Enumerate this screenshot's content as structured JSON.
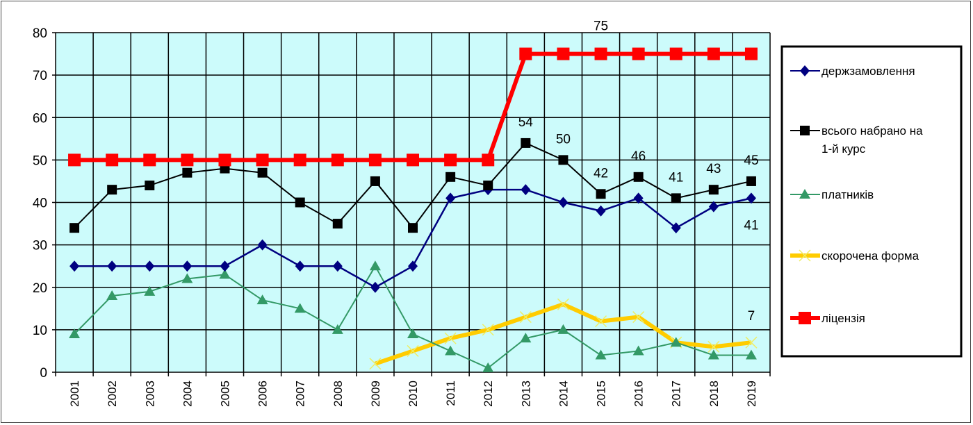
{
  "chart_data": {
    "type": "line",
    "title": "",
    "xlabel": "",
    "ylabel": "",
    "ylim": [
      0,
      80
    ],
    "yticks": [
      0,
      10,
      20,
      30,
      40,
      50,
      60,
      70,
      80
    ],
    "grid": true,
    "legend_position": "right",
    "background": "#ccfbfb",
    "categories": [
      "2001",
      "2002",
      "2003",
      "2004",
      "2005",
      "2006",
      "2007",
      "2008",
      "2009",
      "2010",
      "2011",
      "2012",
      "2013",
      "2014",
      "2015",
      "2016",
      "2017",
      "2018",
      "2019"
    ],
    "series": [
      {
        "name": "держзамовлення",
        "color": "#000080",
        "marker": "diamond",
        "values": [
          25,
          25,
          25,
          25,
          25,
          30,
          25,
          25,
          20,
          25,
          41,
          43,
          43,
          40,
          38,
          41,
          34,
          39,
          41
        ]
      },
      {
        "name": "всього набрано на 1-й курс",
        "color": "#000000",
        "marker": "square",
        "values": [
          34,
          43,
          44,
          47,
          48,
          47,
          40,
          35,
          45,
          34,
          46,
          44,
          54,
          50,
          42,
          46,
          41,
          43,
          45
        ]
      },
      {
        "name": "платників",
        "color": "#339966",
        "marker": "triangle",
        "values": [
          9,
          18,
          19,
          22,
          23,
          17,
          15,
          10,
          25,
          9,
          5,
          1,
          8,
          10,
          4,
          5,
          7,
          4,
          4
        ]
      },
      {
        "name": "скорочена форма",
        "color": "#ffcc00",
        "marker": "x",
        "values": [
          null,
          null,
          null,
          null,
          null,
          null,
          null,
          null,
          2,
          5,
          8,
          10,
          13,
          16,
          12,
          13,
          7,
          6,
          7
        ]
      },
      {
        "name": "ліцензія",
        "color": "#ff0000",
        "marker": "square",
        "values": [
          50,
          50,
          50,
          50,
          50,
          50,
          50,
          50,
          50,
          50,
          50,
          50,
          75,
          75,
          75,
          75,
          75,
          75,
          75
        ]
      }
    ],
    "data_labels": [
      {
        "text": "75",
        "category": "2015",
        "series": 4
      },
      {
        "text": "54",
        "category": "2013",
        "series": 1
      },
      {
        "text": "50",
        "category": "2014",
        "series": 1
      },
      {
        "text": "42",
        "category": "2015",
        "series": 1
      },
      {
        "text": "46",
        "category": "2016",
        "series": 1
      },
      {
        "text": "41",
        "category": "2017",
        "series": 1
      },
      {
        "text": "43",
        "category": "2018",
        "series": 1
      },
      {
        "text": "45",
        "category": "2019",
        "series": 1
      },
      {
        "text": "41",
        "category": "2019",
        "series": 0
      },
      {
        "text": "7",
        "category": "2019",
        "series": 3
      }
    ]
  },
  "legend": {
    "items": [
      {
        "label_lines": [
          "держзамовлення"
        ]
      },
      {
        "label_lines": [
          "всього набрано на",
          "1-й курс"
        ]
      },
      {
        "label_lines": [
          "платників"
        ]
      },
      {
        "label_lines": [
          "скорочена форма"
        ]
      },
      {
        "label_lines": [
          "ліцензія"
        ]
      }
    ]
  }
}
